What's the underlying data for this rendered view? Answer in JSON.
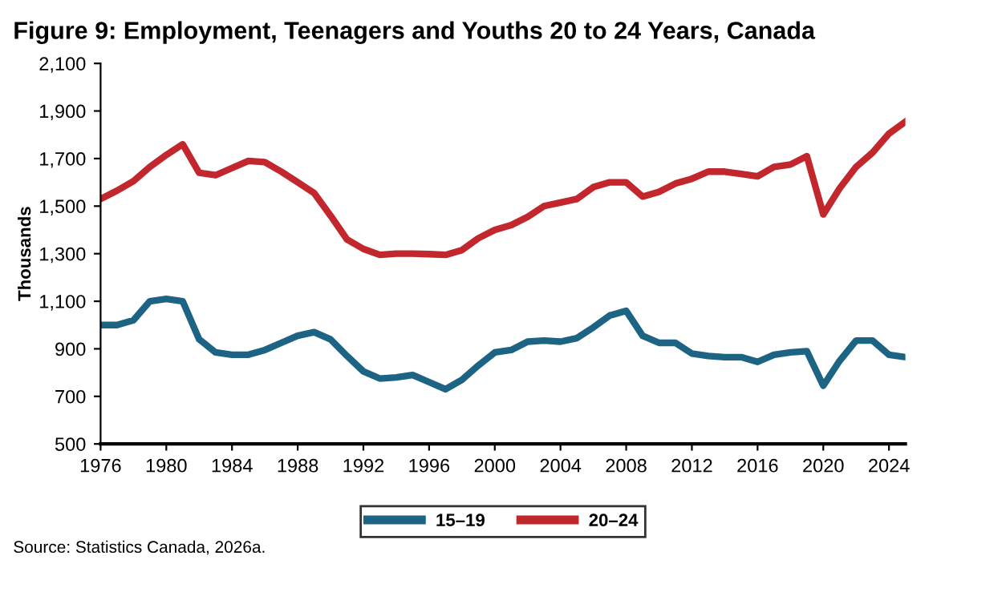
{
  "chart_data": {
    "type": "line",
    "title": "Figure 9: Employment, Teenagers and Youths 20 to 24 Years, Canada",
    "ylabel": "Thousands",
    "annotations": [
      "Source: Statistics Canada, 2026a."
    ],
    "x": [
      1976,
      1977,
      1978,
      1979,
      1980,
      1981,
      1982,
      1983,
      1984,
      1985,
      1986,
      1987,
      1988,
      1989,
      1990,
      1991,
      1992,
      1993,
      1994,
      1995,
      1996,
      1997,
      1998,
      1999,
      2000,
      2001,
      2002,
      2003,
      2004,
      2005,
      2006,
      2007,
      2008,
      2009,
      2010,
      2011,
      2012,
      2013,
      2014,
      2015,
      2016,
      2017,
      2018,
      2019,
      2020,
      2021,
      2022,
      2023,
      2024,
      2025
    ],
    "series": [
      {
        "name": "15–19",
        "color": "#1d6484",
        "values": [
          1000,
          1000,
          1020,
          1100,
          1110,
          1100,
          940,
          885,
          875,
          875,
          895,
          925,
          955,
          970,
          940,
          870,
          805,
          775,
          780,
          790,
          760,
          730,
          770,
          830,
          885,
          895,
          930,
          935,
          930,
          945,
          990,
          1040,
          1060,
          955,
          925,
          925,
          880,
          870,
          865,
          865,
          845,
          875,
          885,
          890,
          745,
          850,
          935,
          935,
          875,
          865
        ]
      },
      {
        "name": "20–24",
        "color": "#c1272d",
        "values": [
          1530,
          1565,
          1605,
          1665,
          1715,
          1760,
          1640,
          1630,
          1660,
          1690,
          1685,
          1645,
          1600,
          1555,
          1460,
          1360,
          1320,
          1295,
          1300,
          1300,
          1298,
          1295,
          1315,
          1365,
          1400,
          1420,
          1455,
          1500,
          1515,
          1530,
          1580,
          1600,
          1600,
          1540,
          1560,
          1595,
          1615,
          1645,
          1645,
          1635,
          1625,
          1665,
          1675,
          1710,
          1465,
          1575,
          1665,
          1725,
          1805,
          1855
        ]
      }
    ],
    "xlim": [
      1976,
      2025
    ],
    "xticks": [
      1976,
      1980,
      1984,
      1988,
      1992,
      1996,
      2000,
      2004,
      2008,
      2012,
      2016,
      2020,
      2024
    ],
    "ylim": [
      500,
      2100
    ],
    "yticks": [
      {
        "value": 500,
        "label": "500"
      },
      {
        "value": 700,
        "label": "700"
      },
      {
        "value": 900,
        "label": "900"
      },
      {
        "value": 1100,
        "label": "1,100"
      },
      {
        "value": 1300,
        "label": "1,300"
      },
      {
        "value": 1500,
        "label": "1,500"
      },
      {
        "value": 1700,
        "label": "1,700"
      },
      {
        "value": 1900,
        "label": "1,900"
      },
      {
        "value": 2100,
        "label": "2,100"
      }
    ],
    "grid": false,
    "legend": "bottom",
    "marker": "none",
    "line_style": "solid"
  }
}
